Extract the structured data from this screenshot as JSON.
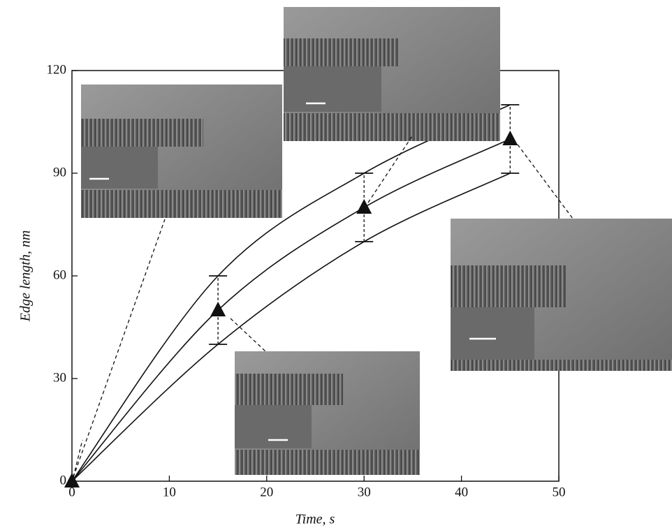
{
  "chart_data": {
    "type": "line",
    "x_label": "Time, s",
    "y_label": "Edge length, nm",
    "x": [
      0,
      15,
      30,
      45
    ],
    "series": [
      {
        "color": "#111111",
        "values": [
          0,
          40,
          70,
          90
        ]
      },
      {
        "color": "#111111",
        "values": [
          0,
          50,
          80,
          100
        ],
        "marker": "triangle"
      },
      {
        "color": "#111111",
        "values": [
          0,
          60,
          90,
          110
        ]
      }
    ],
    "xlim": [
      0,
      50
    ],
    "ylim": [
      0,
      120
    ],
    "xticks": [
      0,
      10,
      20,
      30,
      40,
      50
    ],
    "yticks": [
      0,
      30,
      60,
      90,
      120
    ]
  }
}
